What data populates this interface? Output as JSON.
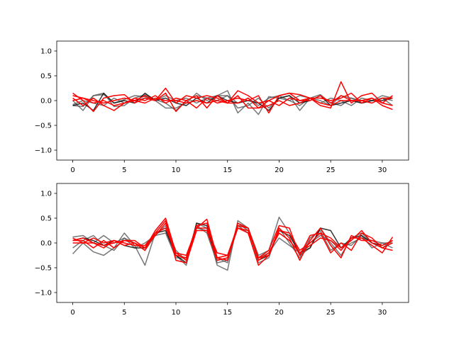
{
  "chart_data": [
    {
      "type": "line",
      "title": "",
      "xlabel": "",
      "ylabel": "",
      "xlim": [
        -1.55,
        32.55
      ],
      "ylim": [
        -1.2,
        1.2
      ],
      "xticks": [
        0,
        5,
        10,
        15,
        20,
        25,
        30
      ],
      "yticks": [
        -1.0,
        -0.5,
        0.0,
        0.5,
        1.0
      ],
      "x": [
        0,
        1,
        2,
        3,
        4,
        5,
        6,
        7,
        8,
        9,
        10,
        11,
        12,
        13,
        14,
        15,
        16,
        17,
        18,
        19,
        20,
        21,
        22,
        23,
        24,
        25,
        26,
        27,
        28,
        29,
        30,
        31
      ],
      "grid": false,
      "series": [
        {
          "color": "#555555",
          "opacity": 0.8,
          "values": [
            -0.1,
            -0.12,
            0.1,
            0.12,
            -0.05,
            0.02,
            0.1,
            0.08,
            0.0,
            -0.15,
            -0.15,
            -0.05,
            0.15,
            0.0,
            0.1,
            0.2,
            -0.25,
            -0.05,
            -0.28,
            0.08,
            0.05,
            0.1,
            -0.2,
            0.05,
            0.0,
            -0.1,
            0.1,
            0.05,
            -0.05,
            0.0,
            0.1,
            0.05
          ]
        },
        {
          "color": "#555555",
          "opacity": 0.8,
          "values": [
            0.0,
            -0.2,
            0.1,
            0.15,
            -0.12,
            -0.1,
            0.05,
            0.12,
            0.02,
            -0.05,
            -0.2,
            0.0,
            0.1,
            0.05,
            0.1,
            0.1,
            -0.15,
            -0.1,
            0.05,
            -0.15,
            0.05,
            0.0,
            0.1,
            0.05,
            0.12,
            -0.05,
            -0.1,
            0.05,
            0.0,
            -0.05,
            0.05,
            0.0
          ]
        },
        {
          "color": "#555555",
          "opacity": 0.8,
          "values": [
            -0.08,
            0.0,
            -0.05,
            -0.1,
            0.05,
            -0.05,
            0.0,
            0.05,
            0.0,
            0.1,
            0.0,
            0.05,
            -0.05,
            0.05,
            0.0,
            0.1,
            -0.05,
            0.05,
            -0.1,
            0.05,
            0.1,
            0.0,
            -0.1,
            0.05,
            -0.05,
            0.05,
            0.0,
            -0.1,
            0.05,
            0.0,
            0.05,
            -0.1
          ]
        },
        {
          "color": "#111111",
          "opacity": 0.85,
          "values": [
            -0.1,
            -0.05,
            -0.2,
            0.15,
            -0.05,
            0.0,
            -0.05,
            0.15,
            0.0,
            0.05,
            -0.05,
            -0.1,
            0.05,
            -0.05,
            0.1,
            0.0,
            -0.05,
            0.0,
            -0.05,
            -0.2,
            0.05,
            0.1,
            -0.05,
            0.0,
            0.1,
            -0.1,
            -0.05,
            0.0,
            -0.05,
            0.0,
            0.0,
            0.05
          ]
        },
        {
          "color": "#ff0000",
          "opacity": 1,
          "values": [
            0.15,
            0.0,
            -0.22,
            0.05,
            0.1,
            0.12,
            -0.05,
            0.05,
            0.0,
            0.25,
            -0.05,
            0.1,
            0.05,
            0.1,
            0.05,
            -0.05,
            0.2,
            0.1,
            -0.05,
            0.0,
            0.1,
            0.15,
            0.0,
            0.05,
            -0.1,
            -0.15,
            0.38,
            -0.05,
            0.1,
            0.15,
            -0.05,
            -0.1
          ]
        },
        {
          "color": "#ff0000",
          "opacity": 1,
          "values": [
            0.05,
            -0.1,
            0.05,
            -0.1,
            -0.2,
            -0.05,
            0.05,
            0.0,
            0.1,
            -0.05,
            0.05,
            0.0,
            -0.15,
            0.05,
            -0.05,
            0.0,
            0.05,
            0.0,
            0.1,
            -0.25,
            0.1,
            0.15,
            0.12,
            0.05,
            0.05,
            0.0,
            0.05,
            0.15,
            -0.05,
            0.05,
            -0.05,
            0.1
          ]
        },
        {
          "color": "#ff0000",
          "opacity": 1,
          "values": [
            0.0,
            0.05,
            0.0,
            -0.05,
            0.0,
            0.05,
            0.0,
            0.1,
            0.0,
            0.15,
            -0.22,
            0.0,
            0.1,
            -0.15,
            0.1,
            -0.05,
            0.1,
            -0.15,
            -0.15,
            0.0,
            -0.1,
            0.05,
            0.0,
            0.0,
            0.1,
            -0.05,
            0.1,
            0.0,
            0.0,
            -0.05,
            0.05,
            0.05
          ]
        },
        {
          "color": "#ff0000",
          "opacity": 1,
          "values": [
            0.1,
            0.05,
            -0.05,
            0.0,
            -0.1,
            -0.05,
            0.0,
            -0.05,
            0.05,
            0.0,
            0.0,
            -0.05,
            0.0,
            -0.05,
            0.0,
            -0.05,
            -0.05,
            0.05,
            -0.15,
            -0.1,
            0.0,
            -0.1,
            -0.05,
            0.05,
            -0.05,
            -0.1,
            0.0,
            0.0,
            0.0,
            0.05,
            -0.1,
            -0.18
          ]
        }
      ]
    },
    {
      "type": "line",
      "title": "",
      "xlabel": "",
      "ylabel": "",
      "xlim": [
        -1.55,
        32.55
      ],
      "ylim": [
        -1.2,
        1.2
      ],
      "xticks": [
        0,
        5,
        10,
        15,
        20,
        25,
        30
      ],
      "yticks": [
        -1.0,
        -0.5,
        0.0,
        0.5,
        1.0
      ],
      "x": [
        0,
        1,
        2,
        3,
        4,
        5,
        6,
        7,
        8,
        9,
        10,
        11,
        12,
        13,
        14,
        15,
        16,
        17,
        18,
        19,
        20,
        21,
        22,
        23,
        24,
        25,
        26,
        27,
        28,
        29,
        30,
        31
      ],
      "grid": false,
      "series": [
        {
          "color": "#555555",
          "opacity": 0.8,
          "values": [
            -0.22,
            0.0,
            -0.18,
            -0.25,
            -0.1,
            0.2,
            -0.05,
            -0.45,
            0.2,
            0.3,
            -0.25,
            -0.45,
            0.4,
            0.3,
            -0.45,
            -0.55,
            0.45,
            0.3,
            -0.25,
            -0.15,
            0.52,
            0.2,
            -0.25,
            -0.1,
            0.3,
            0.0,
            -0.25,
            0.1,
            0.2,
            0.0,
            -0.1,
            0.05
          ]
        },
        {
          "color": "#555555",
          "opacity": 0.8,
          "values": [
            0.12,
            0.15,
            0.0,
            0.15,
            0.0,
            0.1,
            -0.1,
            0.0,
            0.15,
            0.2,
            -0.3,
            -0.3,
            0.35,
            0.2,
            -0.4,
            -0.35,
            0.4,
            0.25,
            -0.3,
            -0.2,
            0.1,
            -0.05,
            -0.2,
            0.0,
            0.15,
            0.05,
            -0.1,
            0.0,
            0.1,
            0.05,
            0.0,
            -0.1
          ]
        },
        {
          "color": "#555555",
          "opacity": 0.8,
          "values": [
            -0.1,
            0.05,
            0.15,
            -0.05,
            -0.15,
            0.1,
            0.0,
            -0.15,
            0.15,
            0.35,
            -0.15,
            -0.35,
            0.3,
            0.25,
            -0.3,
            -0.4,
            0.35,
            0.2,
            -0.4,
            -0.3,
            0.3,
            0.0,
            -0.3,
            0.1,
            0.25,
            -0.15,
            0.0,
            -0.05,
            0.15,
            -0.1,
            0.0,
            0.0
          ]
        },
        {
          "color": "#111111",
          "opacity": 0.85,
          "values": [
            0.05,
            0.1,
            0.05,
            -0.05,
            0.05,
            -0.05,
            -0.1,
            -0.1,
            0.2,
            0.25,
            -0.25,
            -0.4,
            0.4,
            0.35,
            -0.35,
            -0.3,
            0.35,
            0.3,
            -0.35,
            -0.25,
            0.25,
            0.15,
            -0.2,
            -0.1,
            0.3,
            0.25,
            -0.1,
            0.1,
            0.15,
            0.0,
            -0.05,
            0.05
          ]
        },
        {
          "color": "#ff0000",
          "opacity": 1,
          "values": [
            0.05,
            0.05,
            -0.1,
            0.05,
            -0.1,
            0.05,
            0.05,
            -0.1,
            0.25,
            0.5,
            -0.2,
            -0.25,
            0.3,
            0.48,
            -0.3,
            -0.25,
            0.35,
            0.3,
            -0.3,
            -0.15,
            0.35,
            0.3,
            -0.25,
            0.15,
            0.2,
            -0.2,
            0.0,
            -0.15,
            0.2,
            0.1,
            -0.1,
            -0.15
          ]
        },
        {
          "color": "#ff0000",
          "opacity": 1,
          "values": [
            0.0,
            0.0,
            0.1,
            0.0,
            0.05,
            -0.05,
            0.0,
            -0.15,
            0.2,
            0.45,
            -0.35,
            -0.4,
            0.25,
            0.25,
            -0.35,
            -0.3,
            0.3,
            0.2,
            -0.45,
            -0.25,
            0.3,
            0.1,
            -0.35,
            0.05,
            0.3,
            -0.05,
            -0.3,
            0.15,
            0.05,
            0.05,
            -0.05,
            0.05
          ]
        },
        {
          "color": "#ff0000",
          "opacity": 1,
          "values": [
            0.1,
            0.0,
            0.0,
            -0.05,
            0.0,
            0.05,
            0.0,
            -0.1,
            0.15,
            0.4,
            -0.25,
            -0.3,
            0.35,
            0.4,
            -0.3,
            -0.35,
            0.4,
            0.3,
            -0.35,
            -0.2,
            0.2,
            0.05,
            -0.2,
            -0.05,
            0.1,
            0.05,
            -0.15,
            0.1,
            0.1,
            -0.05,
            -0.2,
            0.12
          ]
        },
        {
          "color": "#ff0000",
          "opacity": 1,
          "values": [
            0.05,
            0.1,
            0.0,
            -0.1,
            0.05,
            0.0,
            -0.05,
            -0.05,
            0.2,
            0.3,
            -0.2,
            -0.35,
            0.3,
            0.3,
            -0.2,
            -0.25,
            0.3,
            0.25,
            -0.3,
            -0.25,
            0.25,
            0.2,
            -0.15,
            0.0,
            0.2,
            0.1,
            -0.1,
            0.05,
            0.25,
            0.0,
            -0.1,
            0.0
          ]
        }
      ]
    }
  ]
}
